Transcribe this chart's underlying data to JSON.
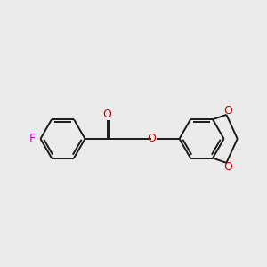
{
  "background_color": "#ebebeb",
  "bond_color": "#1a1a1a",
  "O_color": "#cc0000",
  "F_color": "#cc00cc",
  "line_width": 1.4,
  "figsize": [
    3.0,
    3.0
  ],
  "dpi": 100,
  "xlim": [
    0,
    10
  ],
  "ylim": [
    1.5,
    8.5
  ]
}
